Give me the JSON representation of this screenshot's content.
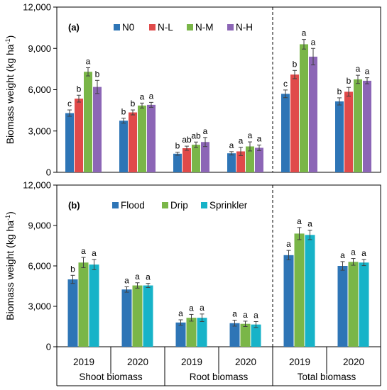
{
  "chart_data": [
    {
      "type": "bar",
      "panel_label": "(a)",
      "ylabel": "Biomass weight (kg ha",
      "ylabel_sup": "-1",
      "ylabel_close": ")",
      "ylim": [
        0,
        12000
      ],
      "yticks": [
        "0",
        "3,000",
        "6,000",
        "9,000",
        "12,000"
      ],
      "ytick_values": [
        0,
        3000,
        6000,
        9000,
        12000
      ],
      "categories": [
        "2019",
        "2020",
        "2019",
        "2020",
        "2019",
        "2020"
      ],
      "series": [
        {
          "name": "N0",
          "color": "#2e75b6",
          "values": [
            4300,
            3750,
            1350,
            1380,
            5700,
            5150
          ],
          "errors": [
            230,
            180,
            110,
            120,
            280,
            260
          ],
          "letters": [
            "c",
            "b",
            "b",
            "a",
            "c",
            "b"
          ]
        },
        {
          "name": "N-L",
          "color": "#e04a4a",
          "values": [
            5350,
            4350,
            1750,
            1520,
            7100,
            5850
          ],
          "errors": [
            250,
            180,
            150,
            300,
            300,
            320
          ],
          "letters": [
            "b",
            "b",
            "ab",
            "a",
            "b",
            "b"
          ]
        },
        {
          "name": "N-M",
          "color": "#7ab648",
          "values": [
            7300,
            4850,
            2000,
            1880,
            9300,
            6750
          ],
          "errors": [
            300,
            180,
            200,
            330,
            350,
            300
          ],
          "letters": [
            "a",
            "a",
            "ab",
            "a",
            "a",
            "a"
          ]
        },
        {
          "name": "N-H",
          "color": "#8c66b6",
          "values": [
            6200,
            4900,
            2200,
            1780,
            8400,
            6650
          ],
          "errors": [
            480,
            180,
            330,
            200,
            600,
            220
          ],
          "letters": [
            "b",
            "a",
            "a",
            "a",
            "a",
            "a"
          ]
        }
      ],
      "grid": false,
      "legend_position": "top-left"
    },
    {
      "type": "bar",
      "panel_label": "(b)",
      "ylabel": "Biomass weight (kg ha",
      "ylabel_sup": "-1",
      "ylabel_close": ")",
      "ylim": [
        0,
        12000
      ],
      "yticks": [
        "0",
        "3,000",
        "6,000",
        "9,000",
        "12,000"
      ],
      "ytick_values": [
        0,
        3000,
        6000,
        9000,
        12000
      ],
      "categories": [
        "2019",
        "2020",
        "2019",
        "2020",
        "2019",
        "2020"
      ],
      "groups": [
        "Shoot biomass",
        "Root biomass",
        "Total biomass"
      ],
      "series": [
        {
          "name": "Flood",
          "color": "#2e75b6",
          "values": [
            5000,
            4250,
            1800,
            1750,
            6800,
            6000
          ],
          "errors": [
            300,
            200,
            200,
            220,
            350,
            320
          ],
          "letters": [
            "b",
            "a",
            "a",
            "a",
            "a",
            "a"
          ]
        },
        {
          "name": "Drip",
          "color": "#7ab648",
          "values": [
            6250,
            4550,
            2150,
            1700,
            8400,
            6300
          ],
          "errors": [
            380,
            200,
            250,
            200,
            450,
            250
          ],
          "letters": [
            "a",
            "a",
            "a",
            "a",
            "a",
            "a"
          ]
        },
        {
          "name": "Sprinkler",
          "color": "#17b3c8",
          "values": [
            6100,
            4550,
            2150,
            1650,
            8300,
            6250
          ],
          "errors": [
            380,
            150,
            280,
            220,
            350,
            230
          ],
          "letters": [
            "a",
            "a",
            "a",
            "a",
            "a",
            "a"
          ]
        }
      ],
      "grid": false,
      "legend_position": "top-left"
    }
  ]
}
